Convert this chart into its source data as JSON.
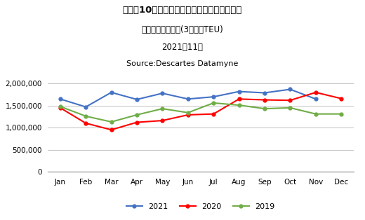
{
  "title_line1": "アジア10ヶ国・地域発米国向けコンテナ輸送",
  "title_line2": "月次トレンド比較(3年間・TEU)",
  "title_line3": "2021年11月",
  "title_line4": "Source:Descartes Datamyne",
  "months": [
    "Jan",
    "Feb",
    "Mar",
    "Apr",
    "May",
    "Jun",
    "Jul",
    "Aug",
    "Sep",
    "Oct",
    "Nov",
    "Dec"
  ],
  "data_2021": [
    1650000,
    1470000,
    1800000,
    1640000,
    1780000,
    1650000,
    1700000,
    1820000,
    1790000,
    1870000,
    1650000
  ],
  "data_2020": [
    1450000,
    1100000,
    950000,
    1120000,
    1160000,
    1290000,
    1310000,
    1650000,
    1630000,
    1620000,
    1800000,
    1660000
  ],
  "data_2019": [
    1480000,
    1260000,
    1130000,
    1290000,
    1430000,
    1340000,
    1560000,
    1510000,
    1430000,
    1450000,
    1310000,
    1310000
  ],
  "color_2021": "#4472C4",
  "color_2020": "#FF0000",
  "color_2019": "#70AD47",
  "ylim": [
    0,
    2000000
  ],
  "yticks": [
    0,
    500000,
    1000000,
    1500000,
    2000000
  ],
  "bg_color": "#FFFFFF",
  "grid_color": "#C0C0C0"
}
